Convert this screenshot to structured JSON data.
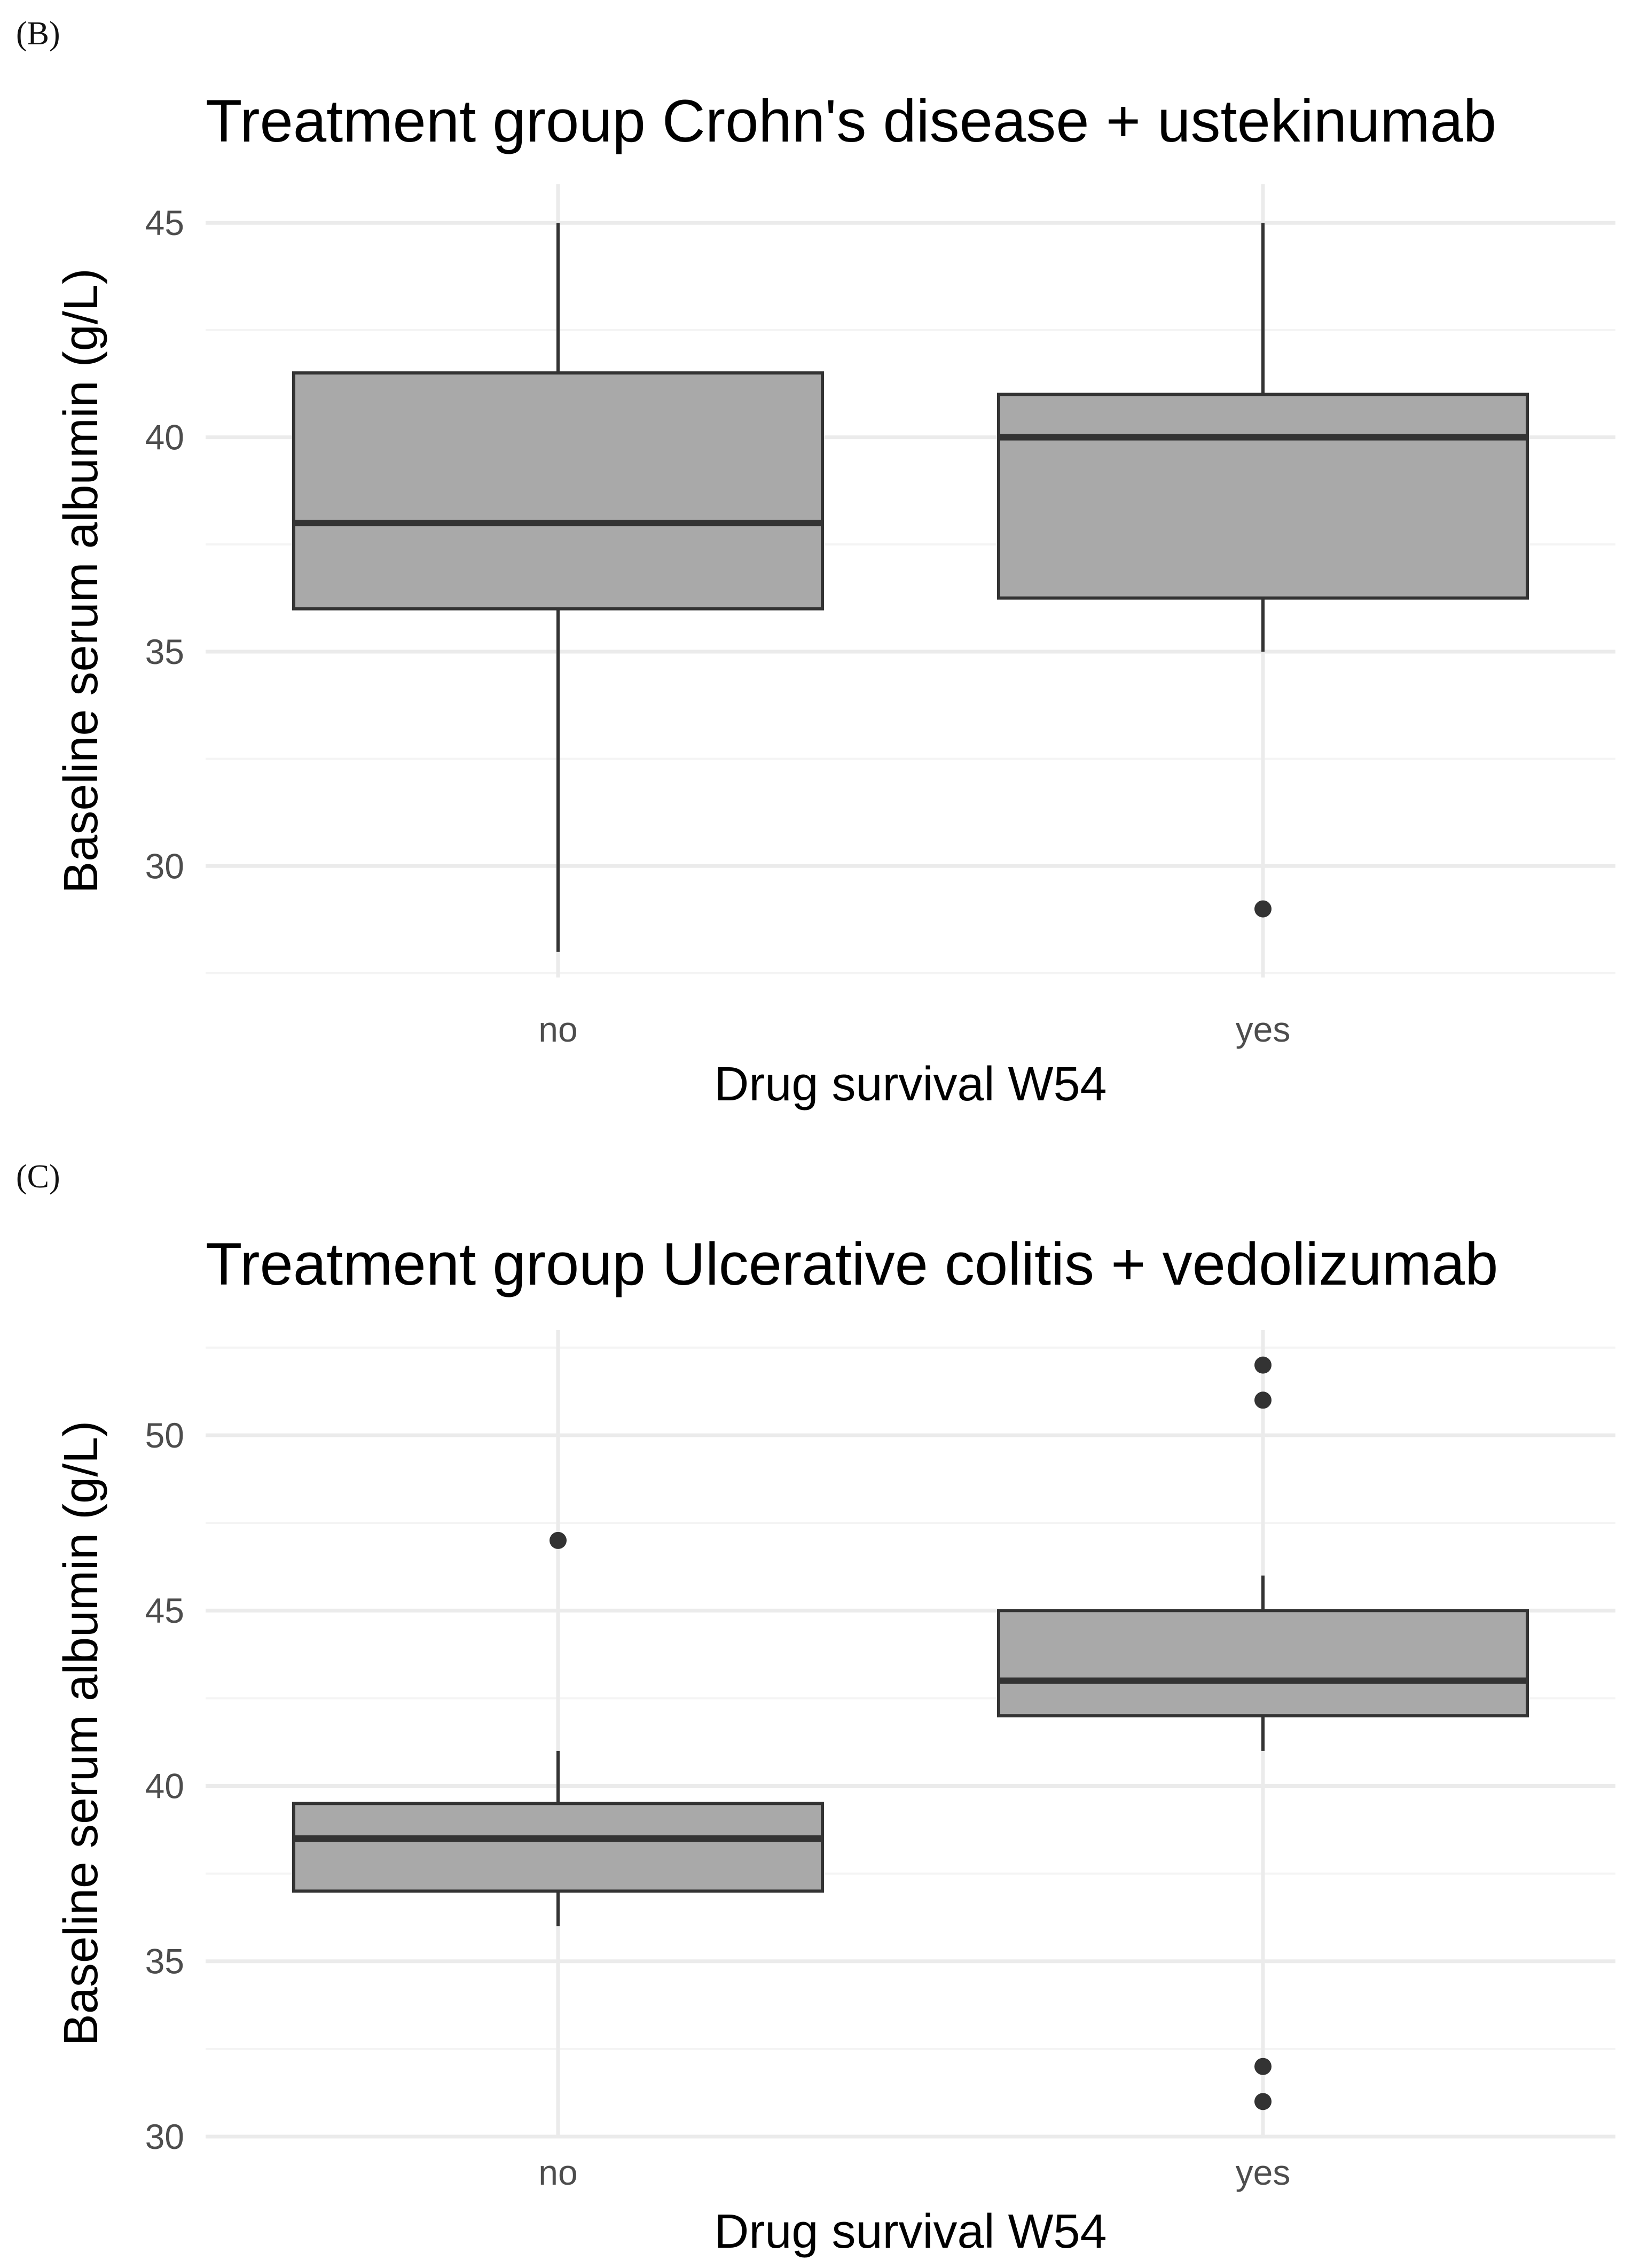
{
  "panels": {
    "b": {
      "label": "(B)"
    },
    "c": {
      "label": "(C)"
    }
  },
  "colors": {
    "box_fill": "#a9a9a9",
    "box_line": "#333333",
    "grid_major": "#ebebeb",
    "grid_minor": "#f4f4f4",
    "tick_text": "#4d4d4d"
  },
  "chart_data": [
    {
      "type": "boxplot",
      "title": "Treatment group Crohn's disease + ustekinumab",
      "xlabel": "Drug survival W54",
      "ylabel": "Baseline serum albumin (g/L)",
      "categories": [
        "no",
        "yes"
      ],
      "ylim": [
        27.4,
        45.9
      ],
      "yticks": [
        30,
        35,
        40,
        45
      ],
      "grid": true,
      "boxes": [
        {
          "category": "no",
          "whisker_low": 28,
          "q1": 36,
          "median": 38,
          "q3": 41.5,
          "whisker_high": 45,
          "outliers": []
        },
        {
          "category": "yes",
          "whisker_low": 35,
          "q1": 36.25,
          "median": 40,
          "q3": 41,
          "whisker_high": 45,
          "outliers": [
            29
          ]
        }
      ]
    },
    {
      "type": "boxplot",
      "title": "Treatment group Ulcerative colitis + vedolizumab",
      "xlabel": "Drug survival W54",
      "ylabel": "Baseline serum albumin (g/L)",
      "categories": [
        "no",
        "yes"
      ],
      "ylim": [
        30,
        53
      ],
      "yticks": [
        30,
        35,
        40,
        45,
        50
      ],
      "grid": true,
      "boxes": [
        {
          "category": "no",
          "whisker_low": 36,
          "q1": 37,
          "median": 38.5,
          "q3": 39.5,
          "whisker_high": 41,
          "outliers": [
            47
          ]
        },
        {
          "category": "yes",
          "whisker_low": 41,
          "q1": 42,
          "median": 43,
          "q3": 45,
          "whisker_high": 46,
          "outliers": [
            52,
            51,
            32,
            31
          ]
        }
      ]
    }
  ]
}
